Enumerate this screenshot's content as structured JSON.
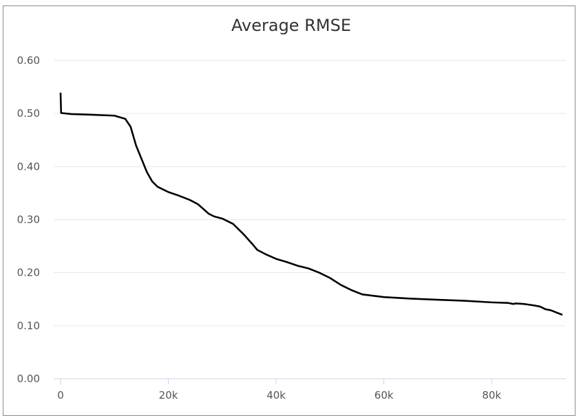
{
  "chart_data": {
    "type": "line",
    "title": "Average RMSE",
    "xlabel": "",
    "ylabel": "",
    "xlim": [
      0,
      93000
    ],
    "ylim": [
      0,
      0.6
    ],
    "grid": true,
    "legend": "none",
    "line_color": "#000000",
    "grid_color": "#e6e6e6",
    "x_tick_labels": [
      {
        "value": 0,
        "label": "0"
      },
      {
        "value": 20000,
        "label": "20k"
      },
      {
        "value": 40000,
        "label": "40k"
      },
      {
        "value": 60000,
        "label": "60k"
      },
      {
        "value": 80000,
        "label": "80k"
      }
    ],
    "y_tick_labels": [
      {
        "value": 0,
        "label": "0.00"
      },
      {
        "value": 0.1,
        "label": "0.10"
      },
      {
        "value": 0.2,
        "label": "0.20"
      },
      {
        "value": 0.3,
        "label": "0.30"
      },
      {
        "value": 0.4,
        "label": "0.40"
      },
      {
        "value": 0.5,
        "label": "0.50"
      },
      {
        "value": 0.6,
        "label": "0.60"
      }
    ],
    "series": [
      {
        "points": [
          [
            0,
            0.538
          ],
          [
            100,
            0.501
          ],
          [
            2000,
            0.499
          ],
          [
            5000,
            0.498
          ],
          [
            10000,
            0.496
          ],
          [
            12000,
            0.49
          ],
          [
            13000,
            0.475
          ],
          [
            14000,
            0.44
          ],
          [
            15000,
            0.415
          ],
          [
            16000,
            0.39
          ],
          [
            17000,
            0.372
          ],
          [
            18000,
            0.362
          ],
          [
            20000,
            0.352
          ],
          [
            22000,
            0.345
          ],
          [
            24000,
            0.337
          ],
          [
            25500,
            0.329
          ],
          [
            26500,
            0.32
          ],
          [
            27500,
            0.311
          ],
          [
            28500,
            0.306
          ],
          [
            30000,
            0.302
          ],
          [
            32000,
            0.292
          ],
          [
            34000,
            0.272
          ],
          [
            35500,
            0.255
          ],
          [
            36500,
            0.243
          ],
          [
            38000,
            0.235
          ],
          [
            40000,
            0.226
          ],
          [
            42000,
            0.22
          ],
          [
            44000,
            0.213
          ],
          [
            46000,
            0.208
          ],
          [
            48000,
            0.2
          ],
          [
            50000,
            0.19
          ],
          [
            52000,
            0.177
          ],
          [
            54000,
            0.167
          ],
          [
            56000,
            0.159
          ],
          [
            60000,
            0.154
          ],
          [
            65000,
            0.151
          ],
          [
            70000,
            0.149
          ],
          [
            75000,
            0.147
          ],
          [
            80000,
            0.144
          ],
          [
            83000,
            0.143
          ],
          [
            84000,
            0.141
          ],
          [
            84500,
            0.142
          ],
          [
            86000,
            0.141
          ],
          [
            88000,
            0.138
          ],
          [
            89000,
            0.136
          ],
          [
            90000,
            0.131
          ],
          [
            91000,
            0.129
          ],
          [
            92000,
            0.125
          ],
          [
            93000,
            0.121
          ]
        ]
      }
    ]
  }
}
